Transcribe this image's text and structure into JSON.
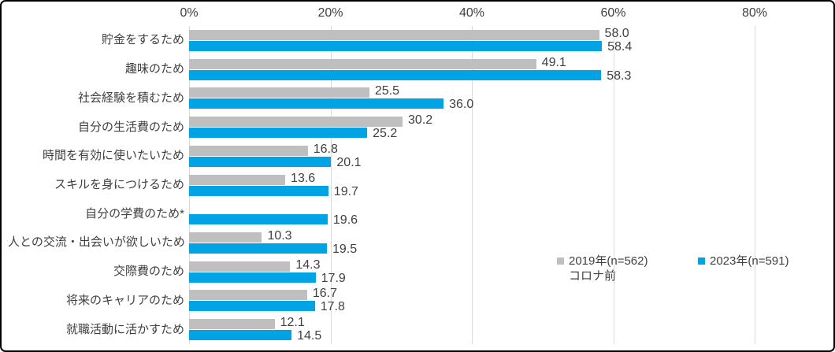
{
  "chart_data": {
    "type": "bar",
    "orientation": "horizontal",
    "title": "",
    "categories": [
      "貯金をするため",
      "趣味のため",
      "社会経験を積むため",
      "自分の生活費のため",
      "時間を有効に使いたいため",
      "スキルを身につけるため",
      "自分の学費のため*",
      "人との交流・出会いが欲しいため",
      "交際費のため",
      "将来のキャリアのため",
      "就職活動に活かすため"
    ],
    "series": [
      {
        "name": "2019年(n=562) コロナ前",
        "color": "#bfbfbf",
        "values": [
          58.0,
          49.1,
          25.5,
          30.2,
          16.8,
          13.6,
          null,
          10.3,
          14.3,
          16.7,
          12.1
        ]
      },
      {
        "name": "2023年(n=591)",
        "color": "#00a3e3",
        "values": [
          58.4,
          58.3,
          36.0,
          25.2,
          20.1,
          19.7,
          19.6,
          19.5,
          17.9,
          17.8,
          14.5
        ]
      }
    ],
    "x_ticks": [
      "0%",
      "20%",
      "40%",
      "60%",
      "80%"
    ],
    "xlim": [
      0,
      80
    ],
    "grid": true,
    "value_label_format": "one-decimal",
    "legend_position": "right-middle"
  },
  "legend": {
    "item1_line1": "2019年(n=562)",
    "item1_line2": "コロナ前",
    "item2": "2023年(n=591)"
  },
  "colors": {
    "series_2019": "#bfbfbf",
    "series_2023": "#00a3e3",
    "text": "#404040",
    "gridline": "#d9d9d9",
    "border": "#000000",
    "background": "#ffffff"
  }
}
